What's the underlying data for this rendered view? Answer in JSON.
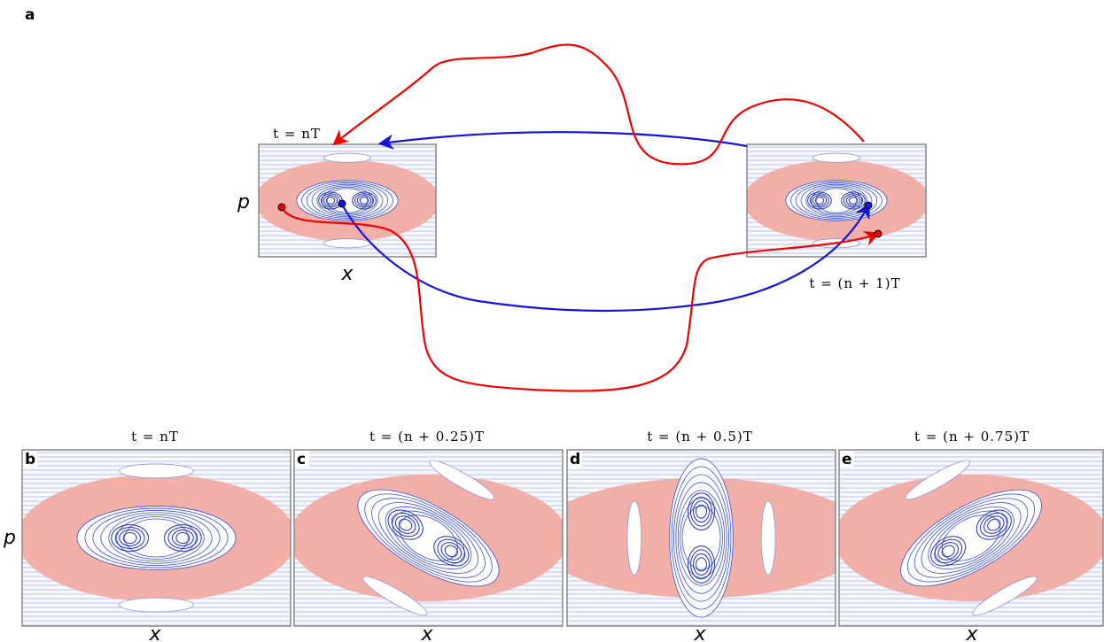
{
  "panel_a": {
    "label": "a",
    "start_time": "t = nT",
    "end_time": "t = (n + 1)T",
    "y_axis": "p",
    "x_axis": "x"
  },
  "y_axis": "p",
  "panels": [
    {
      "label": "b",
      "title": "t = nT",
      "x_axis": "x"
    },
    {
      "label": "c",
      "title": "t = (n + 0.25)T",
      "x_axis": "x"
    },
    {
      "label": "d",
      "title": "t = (n + 0.5)T",
      "x_axis": "x"
    },
    {
      "label": "e",
      "title": "t = (n + 0.75)T",
      "x_axis": "x"
    }
  ]
}
